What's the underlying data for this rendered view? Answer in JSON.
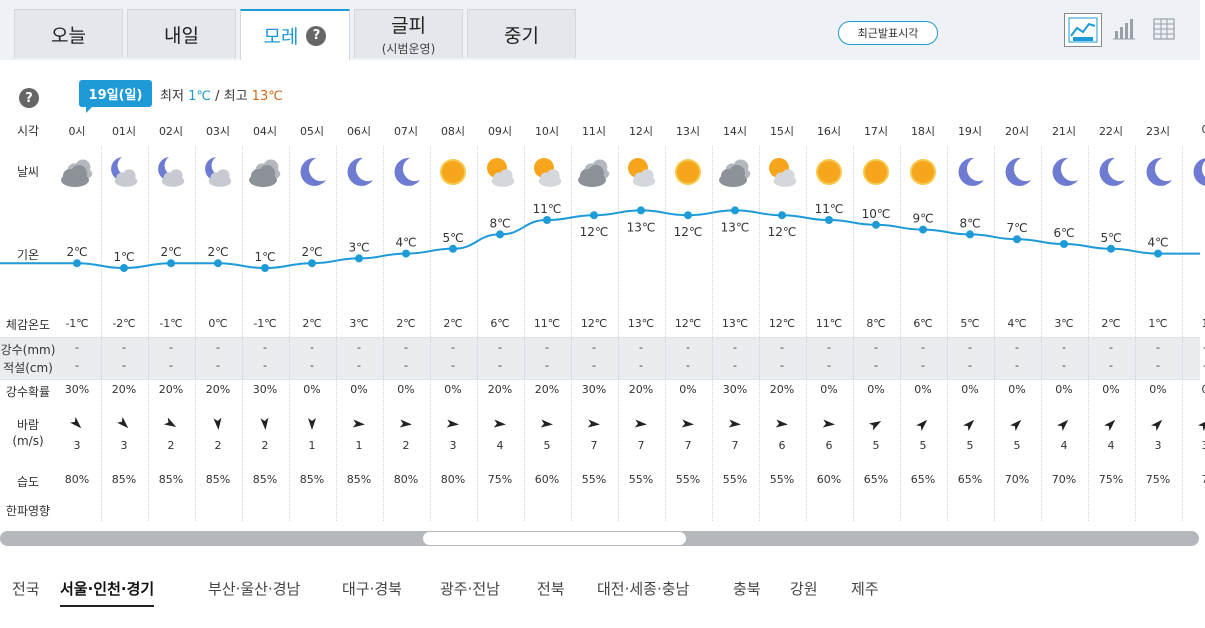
{
  "tabs": [
    {
      "label": "오늘",
      "sub": ""
    },
    {
      "label": "내일",
      "sub": ""
    },
    {
      "label": "모레",
      "sub": "",
      "help": "?"
    },
    {
      "label": "글피",
      "sub": "(시범운영)"
    },
    {
      "label": "중기",
      "sub": ""
    }
  ],
  "latest_button": "최근발표시각",
  "view_icons": [
    "chart-graph-icon",
    "bar-chart-icon",
    "table-icon"
  ],
  "help_icon": "?",
  "day_badge": "19일(일)",
  "minmax": {
    "min_label": "최저",
    "min": "1℃",
    "sep": "/",
    "max_label": "최고",
    "max": "13℃"
  },
  "row_labels": {
    "time": "시각",
    "weather": "날씨",
    "temp": "기온",
    "feels": "체감온도",
    "precip": "강수(mm)",
    "snow": "적설(cm)",
    "prob": "강수확률",
    "wind": "바람",
    "wind_unit": "(m/s)",
    "humidity": "습도",
    "cold": "한파영향"
  },
  "hours": [
    "0시",
    "01시",
    "02시",
    "03시",
    "04시",
    "05시",
    "06시",
    "07시",
    "08시",
    "09시",
    "10시",
    "11시",
    "12시",
    "13시",
    "14시",
    "15시",
    "16시",
    "17시",
    "18시",
    "19시",
    "20시",
    "21시",
    "22시",
    "23시",
    "0"
  ],
  "weather_icons": [
    "cloudy-icon",
    "moon-cloud-icon",
    "moon-cloud-icon",
    "moon-cloud-icon",
    "cloudy-icon",
    "moon-icon",
    "moon-icon",
    "moon-icon",
    "sun-icon",
    "sun-cloud-icon",
    "sun-cloud-icon",
    "cloudy-icon",
    "sun-cloud-icon",
    "sun-icon",
    "cloudy-icon",
    "sun-cloud-icon",
    "sun-icon",
    "sun-icon",
    "sun-icon",
    "moon-icon",
    "moon-icon",
    "moon-icon",
    "moon-icon",
    "moon-icon",
    "moon-icon"
  ],
  "temps": [
    2,
    1,
    2,
    2,
    1,
    2,
    3,
    4,
    5,
    8,
    11,
    12,
    13,
    12,
    13,
    12,
    11,
    10,
    9,
    8,
    7,
    6,
    5,
    4,
    4
  ],
  "temp_labels": [
    "2℃",
    "1℃",
    "2℃",
    "2℃",
    "1℃",
    "2℃",
    "3℃",
    "4℃",
    "5℃",
    "8℃",
    "11℃",
    "12℃",
    "13℃",
    "12℃",
    "13℃",
    "12℃",
    "11℃",
    "10℃",
    "9℃",
    "8℃",
    "7℃",
    "6℃",
    "5℃",
    "4℃",
    "4"
  ],
  "temp_label_below": [
    false,
    false,
    false,
    false,
    false,
    false,
    false,
    false,
    false,
    false,
    false,
    true,
    true,
    true,
    true,
    true,
    false,
    false,
    false,
    false,
    false,
    false,
    false,
    false,
    false
  ],
  "feels": [
    "-1℃",
    "-2℃",
    "-1℃",
    "0℃",
    "-1℃",
    "2℃",
    "3℃",
    "2℃",
    "2℃",
    "6℃",
    "11℃",
    "12℃",
    "13℃",
    "12℃",
    "13℃",
    "12℃",
    "11℃",
    "8℃",
    "6℃",
    "5℃",
    "4℃",
    "3℃",
    "2℃",
    "1℃",
    "1"
  ],
  "precip": [
    "-",
    "-",
    "-",
    "-",
    "-",
    "-",
    "-",
    "-",
    "-",
    "-",
    "-",
    "-",
    "-",
    "-",
    "-",
    "-",
    "-",
    "-",
    "-",
    "-",
    "-",
    "-",
    "-",
    "-",
    "-"
  ],
  "snow": [
    "-",
    "-",
    "-",
    "-",
    "-",
    "-",
    "-",
    "-",
    "-",
    "-",
    "-",
    "-",
    "-",
    "-",
    "-",
    "-",
    "-",
    "-",
    "-",
    "-",
    "-",
    "-",
    "-",
    "-",
    "-"
  ],
  "prob": [
    "30%",
    "20%",
    "20%",
    "20%",
    "30%",
    "0%",
    "0%",
    "0%",
    "0%",
    "20%",
    "20%",
    "30%",
    "20%",
    "0%",
    "30%",
    "20%",
    "0%",
    "0%",
    "0%",
    "0%",
    "0%",
    "0%",
    "0%",
    "0%",
    "0"
  ],
  "wind_speed": [
    "3",
    "3",
    "2",
    "2",
    "2",
    "1",
    "1",
    "2",
    "3",
    "4",
    "5",
    "7",
    "7",
    "7",
    "7",
    "6",
    "6",
    "5",
    "5",
    "5",
    "5",
    "4",
    "4",
    "3",
    "3"
  ],
  "wind_dir_deg": [
    135,
    135,
    120,
    175,
    175,
    180,
    95,
    95,
    95,
    95,
    95,
    95,
    95,
    95,
    95,
    95,
    95,
    60,
    45,
    45,
    45,
    45,
    45,
    45,
    45
  ],
  "humidity": [
    "80%",
    "85%",
    "85%",
    "85%",
    "85%",
    "85%",
    "85%",
    "80%",
    "80%",
    "75%",
    "60%",
    "55%",
    "55%",
    "55%",
    "55%",
    "55%",
    "60%",
    "65%",
    "65%",
    "65%",
    "70%",
    "70%",
    "75%",
    "75%",
    "7"
  ],
  "regions": [
    {
      "label": "전국",
      "active": false
    },
    {
      "label": "서울·인천·경기",
      "active": true
    },
    {
      "label": "부산·울산·경남",
      "active": false
    },
    {
      "label": "대구·경북",
      "active": false
    },
    {
      "label": "광주·전남",
      "active": false
    },
    {
      "label": "전북",
      "active": false
    },
    {
      "label": "대전·세종·충남",
      "active": false
    },
    {
      "label": "충북",
      "active": false
    },
    {
      "label": "강원",
      "active": false
    },
    {
      "label": "제주",
      "active": false
    }
  ],
  "colors": {
    "accent": "#1e9ad6",
    "max_temp": "#d2691e",
    "line": "#1e9ad6"
  },
  "chart_data": {
    "type": "line",
    "x": [
      "0시",
      "01시",
      "02시",
      "03시",
      "04시",
      "05시",
      "06시",
      "07시",
      "08시",
      "09시",
      "10시",
      "11시",
      "12시",
      "13시",
      "14시",
      "15시",
      "16시",
      "17시",
      "18시",
      "19시",
      "20시",
      "21시",
      "22시",
      "23시",
      "0"
    ],
    "series": [
      {
        "name": "기온",
        "values": [
          2,
          1,
          2,
          2,
          1,
          2,
          3,
          4,
          5,
          8,
          11,
          12,
          13,
          12,
          13,
          12,
          11,
          10,
          9,
          8,
          7,
          6,
          5,
          4,
          4
        ]
      }
    ],
    "ylabel": "기온"
  }
}
